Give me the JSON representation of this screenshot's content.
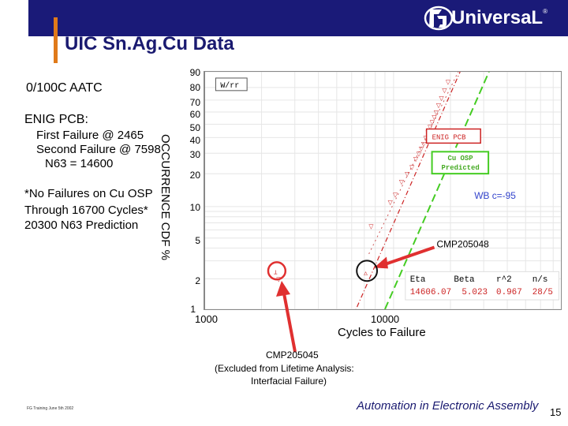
{
  "header": {
    "title": "UIC Sn.Ag.Cu Data",
    "logo_text": "UniversaL",
    "logo_reg": "®"
  },
  "left_panel": {
    "condition": "0/100C AATC",
    "enig_title": "ENIG PCB:",
    "enig_first": "First Failure @ 2465",
    "enig_second": "Second Failure @ 7598",
    "enig_n63": "N63 = 14600",
    "osp_line1": "*No Failures on Cu OSP",
    "osp_line2": "Through 16700 Cycles*",
    "osp_line3": "20300 N63 Prediction"
  },
  "chart_data": {
    "type": "scatter",
    "ylabel": "OCCURRENCE CDF %",
    "xlabel": "Cycles to Failure",
    "xtick_labels": [
      "1000",
      "10000"
    ],
    "ytick_labels": [
      "90",
      "80",
      "70",
      "60",
      "50",
      "40",
      "30",
      "20",
      "10",
      "5",
      "2",
      "1"
    ],
    "xscale": "log",
    "yscale": "weibull",
    "legend_box_label": "W/rr",
    "series": [
      {
        "name": "ENIG PCB",
        "color": "#cc2222",
        "style": "dashed",
        "eta": 14606.07,
        "beta": 5.023,
        "points": [
          [
            2465,
            2.0
          ],
          [
            7598,
            6.5
          ],
          [
            9600,
            11
          ],
          [
            10200,
            13
          ],
          [
            11000,
            17
          ],
          [
            11800,
            20
          ],
          [
            12500,
            23
          ],
          [
            13100,
            27
          ],
          [
            13600,
            30
          ],
          [
            14000,
            33
          ],
          [
            14400,
            36
          ],
          [
            14800,
            40
          ],
          [
            15200,
            44
          ],
          [
            15600,
            48
          ],
          [
            16000,
            52
          ],
          [
            16400,
            56
          ],
          [
            16800,
            60
          ],
          [
            17300,
            66
          ],
          [
            17900,
            72
          ],
          [
            18600,
            78
          ],
          [
            19400,
            84
          ]
        ]
      },
      {
        "name": "Cu OSP Predicted",
        "color": "#44cc22",
        "style": "dashed"
      }
    ],
    "annotations": {
      "wb": "WB c=-95",
      "cmp_a": "CMP205048",
      "cmp_b": "CMP205045",
      "cmp_b_line2": "(Excluded from Lifetime Analysis:",
      "cmp_b_line3": "Interfacial Failure)",
      "enig_box": "ENIG PCB",
      "osp_box_1": "Cu OSP",
      "osp_box_2": "Predicted"
    },
    "stats_table": {
      "headers": [
        "Eta",
        "Beta",
        "r^2",
        "n/s"
      ],
      "values": [
        "14606.07",
        "5.023",
        "0.967",
        "28/5"
      ]
    }
  },
  "footer": {
    "small": "FG Training June 5th 2002",
    "brand": "Automation in Electronic Assembly",
    "page": "15"
  },
  "colors": {
    "header": "#1a1a78",
    "accent": "#e07a1a",
    "title": "#1a1a70",
    "enig": "#cc2222",
    "osp": "#44cc22",
    "arrow": "#e03030"
  }
}
